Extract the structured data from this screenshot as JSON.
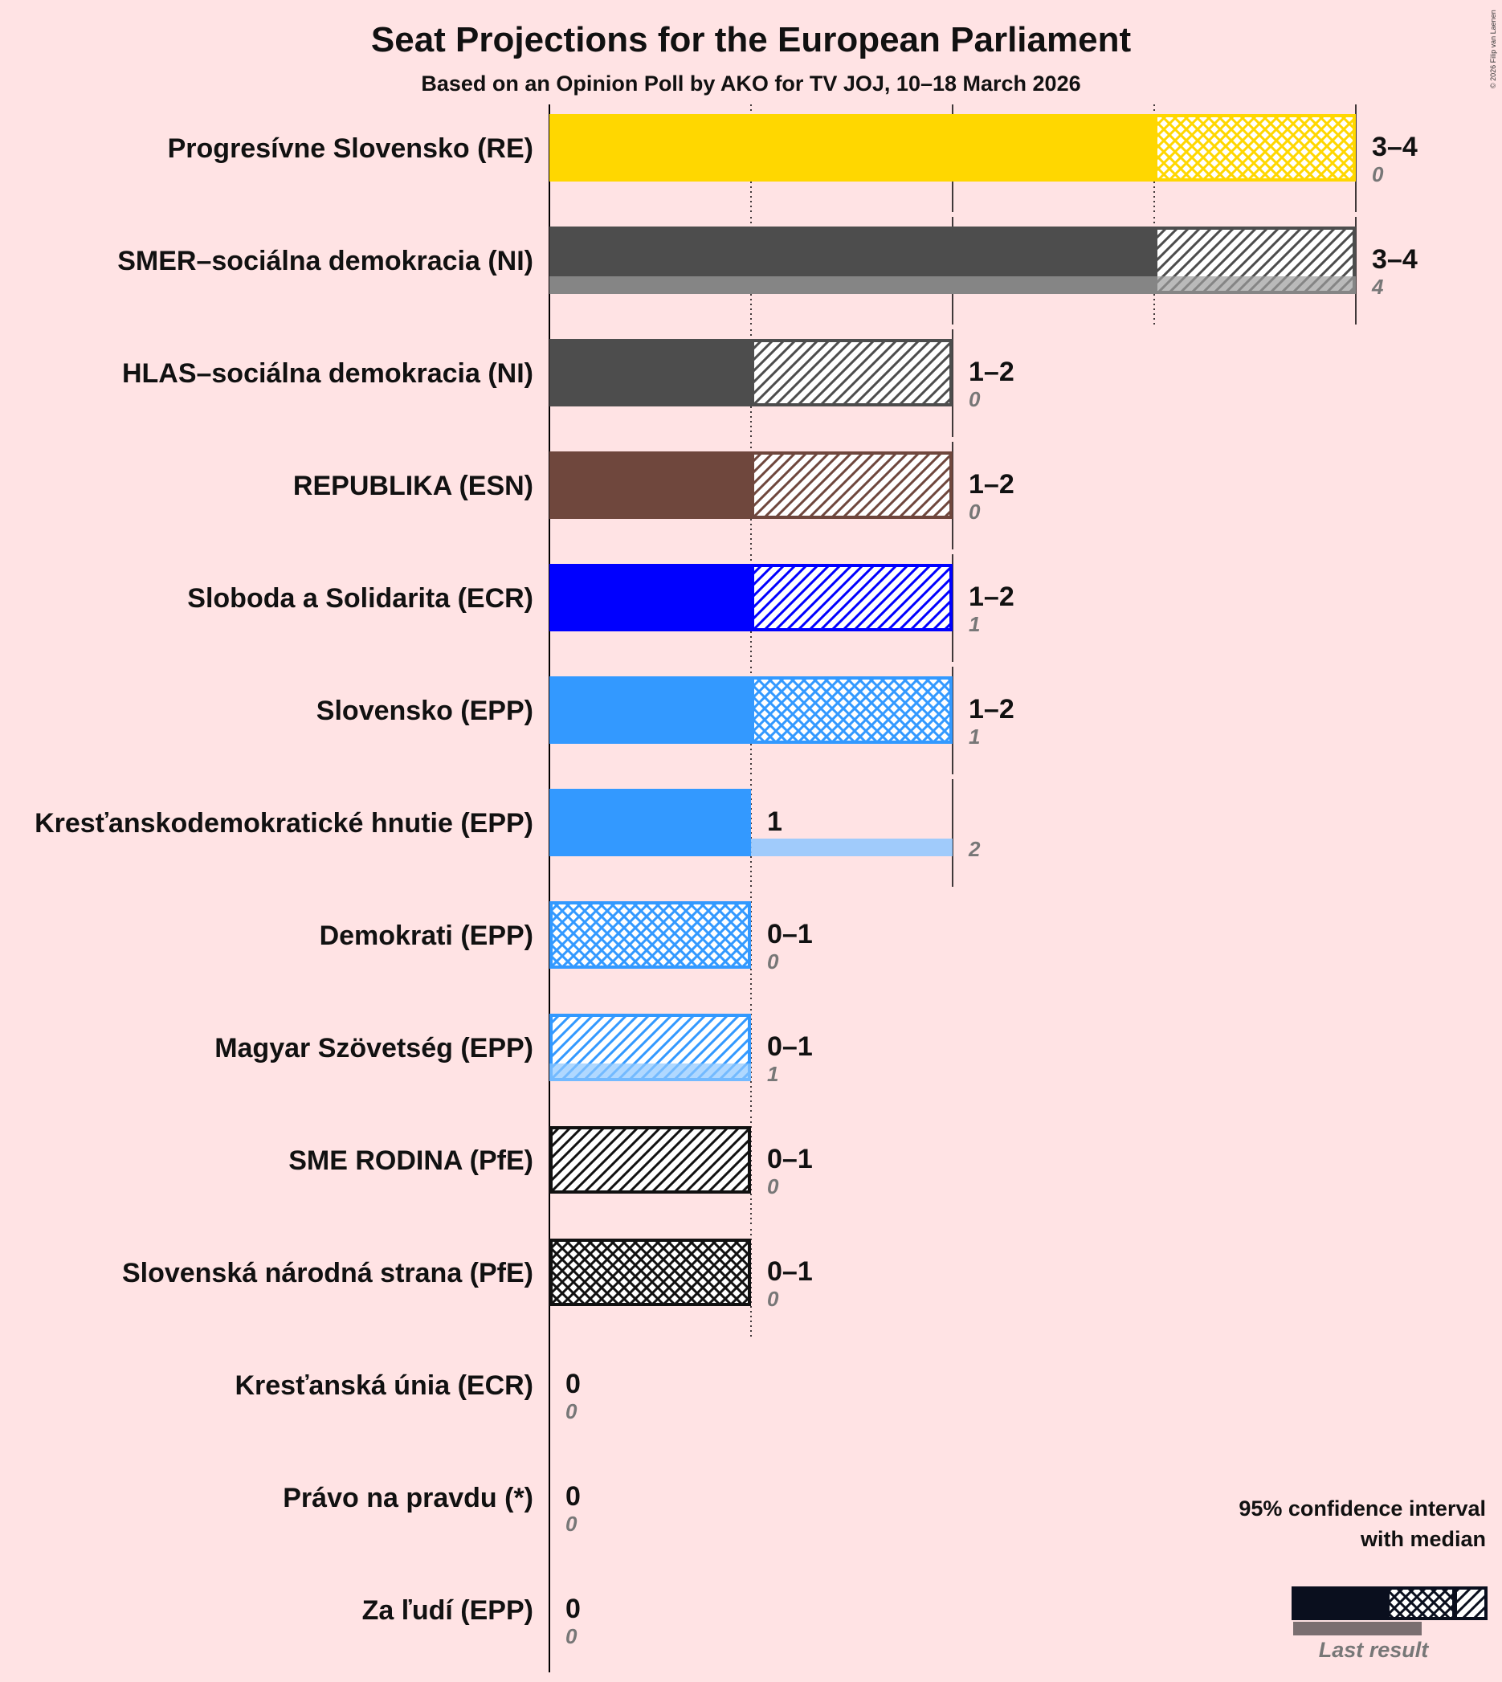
{
  "copyright": "© 2026 Filip van Laenen",
  "chart_data": {
    "type": "bar",
    "orientation": "horizontal",
    "title": "Seat Projections for the European Parliament",
    "subtitle": "Based on an Opinion Poll by AKO for TV JOJ, 10–18 March 2026",
    "x_range": [
      0,
      4
    ],
    "gridlines": [
      1,
      2,
      3,
      4
    ],
    "parties": [
      {
        "name": "Progresívne Slovensko (RE)",
        "color": "#FFD700",
        "low": 3,
        "high": 4,
        "median": 3,
        "label": "3–4",
        "last": 0,
        "last_label": "0",
        "pattern": "cross"
      },
      {
        "name": "SMER–sociálna demokracia (NI)",
        "color": "#4D4D4D",
        "low": 3,
        "high": 4,
        "median": 3,
        "label": "3–4",
        "last": 4,
        "last_label": "4",
        "pattern": "diag"
      },
      {
        "name": "HLAS–sociálna demokracia (NI)",
        "color": "#4D4D4D",
        "low": 1,
        "high": 2,
        "median": 1,
        "label": "1–2",
        "last": 0,
        "last_label": "0",
        "pattern": "diag"
      },
      {
        "name": "REPUBLIKA (ESN)",
        "color": "#6F473D",
        "low": 1,
        "high": 2,
        "median": 1,
        "label": "1–2",
        "last": 0,
        "last_label": "0",
        "pattern": "diag"
      },
      {
        "name": "Sloboda a Solidarita (ECR)",
        "color": "#0000FF",
        "low": 1,
        "high": 2,
        "median": 1,
        "label": "1–2",
        "last": 1,
        "last_label": "1",
        "pattern": "diag"
      },
      {
        "name": "Slovensko (EPP)",
        "color": "#3399FF",
        "low": 1,
        "high": 2,
        "median": 1,
        "label": "1–2",
        "last": 1,
        "last_label": "1",
        "pattern": "cross"
      },
      {
        "name": "Kresťanskodemokratické hnutie (EPP)",
        "color": "#3399FF",
        "low": 1,
        "high": 1,
        "median": 1,
        "label": "1",
        "last": 2,
        "last_label": "2",
        "pattern": "none"
      },
      {
        "name": "Demokrati (EPP)",
        "color": "#3399FF",
        "low": 0,
        "high": 1,
        "median": 0,
        "label": "0–1",
        "last": 0,
        "last_label": "0",
        "pattern": "cross"
      },
      {
        "name": "Magyar Szövetség (EPP)",
        "color": "#3399FF",
        "low": 0,
        "high": 1,
        "median": 0,
        "label": "0–1",
        "last": 1,
        "last_label": "1",
        "pattern": "diag"
      },
      {
        "name": "SME RODINA (PfE)",
        "color": "#111111",
        "low": 0,
        "high": 1,
        "median": 0,
        "label": "0–1",
        "last": 0,
        "last_label": "0",
        "pattern": "diag"
      },
      {
        "name": "Slovenská národná strana (PfE)",
        "color": "#111111",
        "low": 0,
        "high": 1,
        "median": 0,
        "label": "0–1",
        "last": 0,
        "last_label": "0",
        "pattern": "cross"
      },
      {
        "name": "Kresťanská únia (ECR)",
        "color": "#0000FF",
        "low": 0,
        "high": 0,
        "median": 0,
        "label": "0",
        "last": 0,
        "last_label": "0",
        "pattern": "none"
      },
      {
        "name": "Právo na pravdu (*)",
        "color": "#888888",
        "low": 0,
        "high": 0,
        "median": 0,
        "label": "0",
        "last": 0,
        "last_label": "0",
        "pattern": "none"
      },
      {
        "name": "Za ľudí (EPP)",
        "color": "#3399FF",
        "low": 0,
        "high": 0,
        "median": 0,
        "label": "0",
        "last": 0,
        "last_label": "0",
        "pattern": "none"
      }
    ],
    "legend": {
      "line1": "95% confidence interval",
      "line2": "with median",
      "last_result": "Last result",
      "color": "#0A0F1E",
      "position": "bottom-right"
    }
  }
}
